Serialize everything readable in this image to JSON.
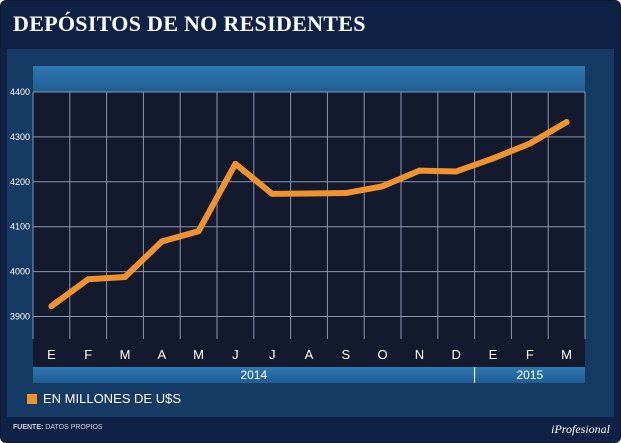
{
  "title": "DEPÓSITOS DE NO RESIDENTES",
  "legend": {
    "label": "EN MILLONES DE U$S",
    "color": "#f0922e"
  },
  "footer": {
    "source_label": "FUENTE:",
    "source_value": "DATOS PROPIOS",
    "brand": "iProfesional"
  },
  "chart_data": {
    "type": "line",
    "title": "DEPÓSITOS DE NO RESIDENTES",
    "categories": [
      "E",
      "F",
      "M",
      "A",
      "M",
      "J",
      "J",
      "A",
      "S",
      "O",
      "N",
      "D",
      "E",
      "F",
      "M"
    ],
    "years": [
      {
        "label": "2014",
        "from": 0,
        "to": 11
      },
      {
        "label": "2015",
        "from": 12,
        "to": 14
      }
    ],
    "series": [
      {
        "name": "EN MILLONES DE U$S",
        "color": "#f0922e",
        "values": [
          3923,
          3983,
          3988,
          4067,
          4090,
          4240,
          4173,
          4174,
          4175,
          4190,
          4225,
          4223,
          4252,
          4285,
          4333
        ]
      }
    ],
    "yticks": [
      3900,
      4000,
      4100,
      4200,
      4300,
      4400
    ],
    "ylim": [
      3900,
      4400
    ],
    "xlabel": "",
    "ylabel": "EN MILLONES DE U$S",
    "grid": true
  }
}
